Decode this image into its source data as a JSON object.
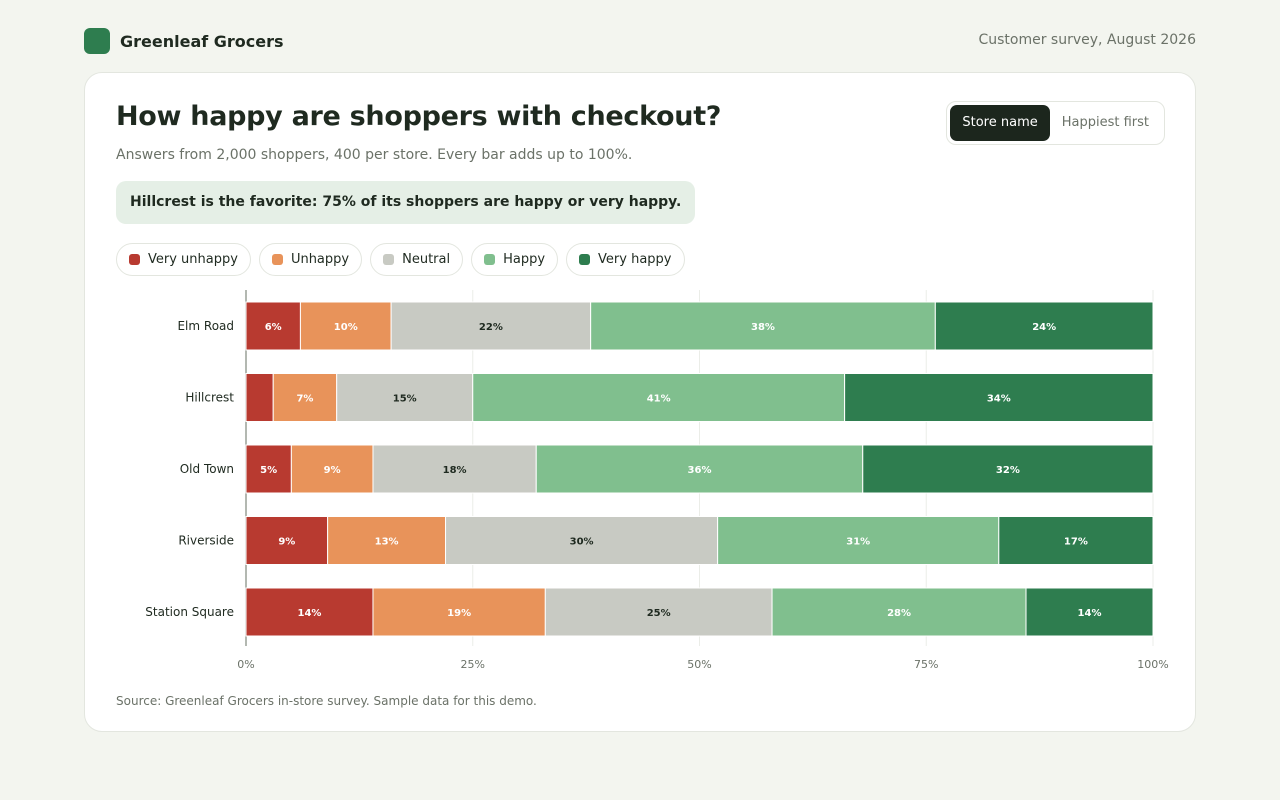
{
  "brand": {
    "name": "Greenleaf Grocers"
  },
  "header": {
    "survey_date": "Customer survey, August 2026"
  },
  "toggle": {
    "options": [
      "Store name",
      "Happiest first"
    ],
    "active": 0
  },
  "callout": "Hillcrest is the favorite: 75% of its shoppers are happy or very happy.",
  "footer": {
    "source": "Source: Greenleaf Grocers in-store survey. Sample data for this demo."
  },
  "colors": {
    "very_unhappy": "#b83a30",
    "unhappy": "#e8935a",
    "neutral": "#c8cac3",
    "happy": "#80bf8e",
    "very_happy": "#2e7d4f"
  },
  "chart_data": {
    "type": "bar",
    "orientation": "horizontal",
    "stacked": true,
    "title": "How happy are shoppers with checkout?",
    "subtitle": "Answers from 2,000 shoppers, 400 per store. Every bar adds up to 100%.",
    "categories": [
      "Elm Road",
      "Hillcrest",
      "Old Town",
      "Riverside",
      "Station Square"
    ],
    "series": [
      {
        "name": "Very unhappy",
        "values": [
          6,
          3,
          5,
          9,
          14
        ]
      },
      {
        "name": "Unhappy",
        "values": [
          10,
          7,
          9,
          13,
          19
        ]
      },
      {
        "name": "Neutral",
        "values": [
          22,
          15,
          18,
          30,
          25
        ]
      },
      {
        "name": "Happy",
        "values": [
          38,
          41,
          36,
          31,
          28
        ]
      },
      {
        "name": "Very happy",
        "values": [
          24,
          34,
          32,
          17,
          14
        ]
      }
    ],
    "xlim": [
      0,
      100
    ],
    "xticks": [
      "0%",
      "25%",
      "50%",
      "75%",
      "100%"
    ],
    "grid": true,
    "legend_position": "top-left"
  }
}
